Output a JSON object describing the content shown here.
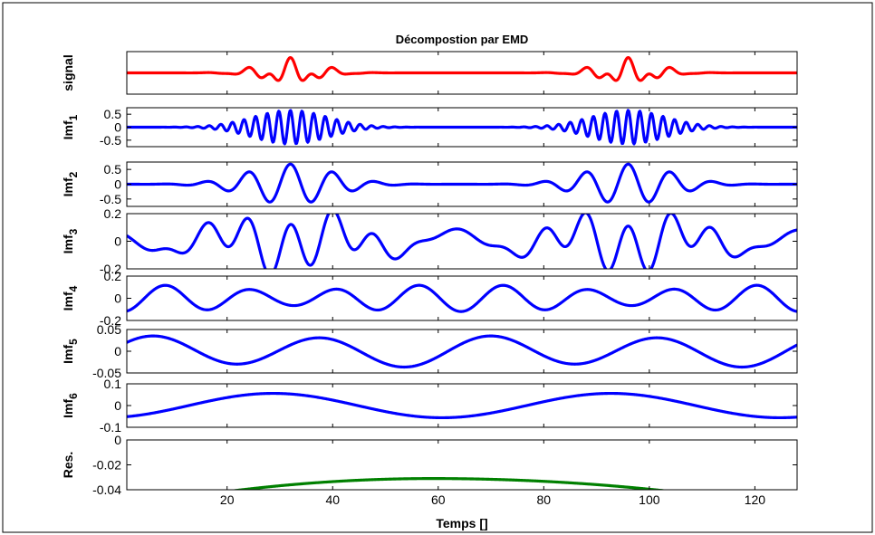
{
  "figure": {
    "title": "Décompostion par EMD",
    "xlabel": "Temps []"
  },
  "colors": {
    "signal": "#ff0000",
    "imf": "#0000ff",
    "residual": "#008000",
    "axes": "#000000"
  },
  "chart_data": {
    "type": "line",
    "title": "Décompostion par EMD",
    "xlabel": "Temps []",
    "xlim": [
      1,
      128
    ],
    "xticks": [
      20,
      40,
      60,
      80,
      100,
      120
    ],
    "grid": false,
    "note_x": "each panel samples t = 1..128",
    "panels": [
      {
        "key": "signal",
        "ylabel": "signal",
        "subscript": "",
        "color": "signal",
        "yticks": [],
        "ytick_labels": [],
        "ylim": [
          -1.6,
          1.6
        ],
        "components": [
          {
            "kind": "packet",
            "amp": 0.55,
            "center": 32,
            "width": 5,
            "period": 4
          },
          {
            "kind": "packet",
            "amp": 0.55,
            "center": 96,
            "width": 5,
            "period": 4
          },
          {
            "kind": "packet",
            "amp": 0.6,
            "center": 32,
            "width": 6,
            "period": 8
          },
          {
            "kind": "packet",
            "amp": 0.6,
            "center": 96,
            "width": 6,
            "period": 8
          }
        ]
      },
      {
        "key": "imf1",
        "ylabel": "Imf",
        "subscript": "1",
        "color": "imf",
        "yticks": [
          0.5,
          0,
          -0.5
        ],
        "ytick_labels": [
          "0.5",
          "0",
          "-0.5"
        ],
        "ylim": [
          -0.75,
          0.75
        ],
        "components": [
          {
            "kind": "packet",
            "amp": 0.65,
            "center": 32,
            "width": 7,
            "period": 2.2
          },
          {
            "kind": "packet",
            "amp": 0.65,
            "center": 96,
            "width": 7,
            "period": 2.2
          }
        ]
      },
      {
        "key": "imf2",
        "ylabel": "Imf",
        "subscript": "2",
        "color": "imf",
        "yticks": [
          0.5,
          0,
          -0.5
        ],
        "ytick_labels": [
          "0.5",
          "0",
          "-0.5"
        ],
        "ylim": [
          -0.75,
          0.75
        ],
        "components": [
          {
            "kind": "packet",
            "amp": 0.68,
            "center": 32,
            "width": 8,
            "period": 8
          },
          {
            "kind": "packet",
            "amp": 0.68,
            "center": 96,
            "width": 8,
            "period": 8
          }
        ]
      },
      {
        "key": "imf3",
        "ylabel": "Imf",
        "subscript": "3",
        "color": "imf",
        "yticks": [
          0.2,
          0,
          -0.2
        ],
        "ytick_labels": [
          "0.2",
          "0",
          "-0.2"
        ],
        "ylim": [
          -0.2,
          0.2
        ],
        "components": [
          {
            "kind": "packet",
            "amp": 0.19,
            "center": 32,
            "width": 12,
            "period": 8
          },
          {
            "kind": "packet",
            "amp": 0.19,
            "center": 96,
            "width": 12,
            "period": 8
          },
          {
            "kind": "sine",
            "amp": 0.08,
            "period": 22,
            "phase": 2.4
          }
        ]
      },
      {
        "key": "imf4",
        "ylabel": "Imf",
        "subscript": "4",
        "color": "imf",
        "yticks": [
          0.2,
          0,
          -0.2
        ],
        "ytick_labels": [
          "0.2",
          "0",
          "-0.2"
        ],
        "ylim": [
          -0.2,
          0.2
        ],
        "components": [
          {
            "kind": "sine",
            "amp": 0.12,
            "period": 16,
            "phase": -1.7
          },
          {
            "kind": "packet",
            "amp": 0.055,
            "center": 32,
            "width": 10,
            "period": 16
          },
          {
            "kind": "packet",
            "amp": 0.055,
            "center": 96,
            "width": 10,
            "period": 16
          }
        ]
      },
      {
        "key": "imf5",
        "ylabel": "Imf",
        "subscript": "5",
        "color": "imf",
        "yticks": [
          0.05,
          0,
          -0.05
        ],
        "ytick_labels": [
          "0.05",
          "0",
          "-0.05"
        ],
        "ylim": [
          -0.05,
          0.05
        ],
        "components": [
          {
            "kind": "sine",
            "amp": 0.033,
            "period": 32,
            "phase": 0.45
          },
          {
            "kind": "sine",
            "amp": 0.004,
            "period": 64,
            "phase": 0.0
          }
        ]
      },
      {
        "key": "imf6",
        "ylabel": "Imf",
        "subscript": "6",
        "color": "imf",
        "yticks": [
          0.1,
          0,
          -0.1
        ],
        "ytick_labels": [
          "0.1",
          "0",
          "-0.1"
        ],
        "ylim": [
          -0.1,
          0.1
        ],
        "components": [
          {
            "kind": "sine",
            "amp": 0.056,
            "period": 64,
            "phase": -1.25
          }
        ]
      },
      {
        "key": "residual",
        "ylabel": "Res.",
        "subscript": "",
        "color": "residual",
        "yticks": [
          0,
          -0.02,
          -0.04
        ],
        "ytick_labels": [
          "0",
          "-0.02",
          "-0.04"
        ],
        "ylim": [
          -0.04,
          0
        ],
        "components": [
          {
            "kind": "quad",
            "a": -5.1e-06,
            "vertex": 59,
            "base": -0.031
          }
        ]
      }
    ]
  }
}
